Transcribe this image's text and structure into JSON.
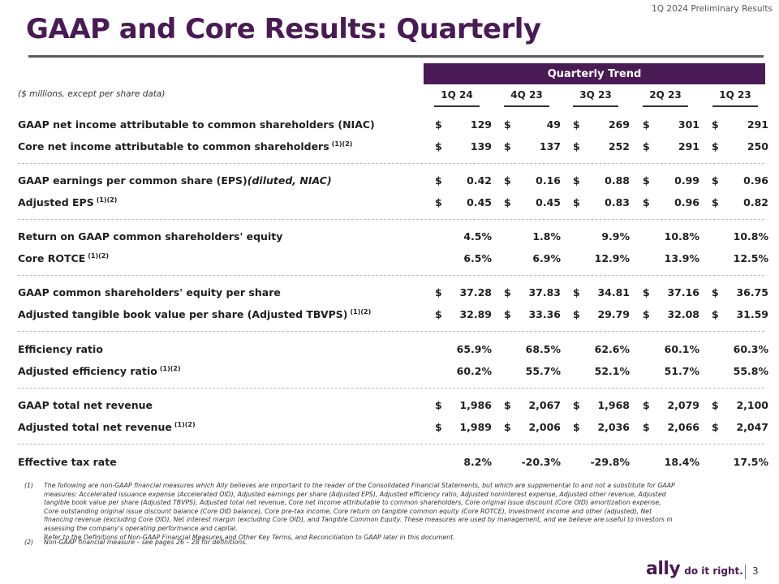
{
  "header": {
    "top_right": "1Q 2024 Preliminary Results",
    "title": "GAAP and Core Results: Quarterly"
  },
  "table": {
    "band_label": "Quarterly Trend",
    "units_note": "($ millions, except per share data)",
    "columns": [
      "1Q 24",
      "4Q 23",
      "3Q 23",
      "2Q 23",
      "1Q 23"
    ],
    "rows": [
      {
        "label": "GAAP net income attributable to common shareholders (NIAC)",
        "sup": "",
        "values": [
          "129",
          "49",
          "269",
          "301",
          "291"
        ],
        "dollar": true
      },
      {
        "label": "Core net income attributable to common shareholders",
        "sup": "(1)(2)",
        "values": [
          "139",
          "137",
          "252",
          "291",
          "250"
        ],
        "dollar": true
      },
      {
        "label": "GAAP earnings per common share (EPS)",
        "label_italic": "(diluted, NIAC)",
        "sup": "",
        "values": [
          "0.42",
          "0.16",
          "0.88",
          "0.99",
          "0.96"
        ],
        "dollar": true
      },
      {
        "label": "Adjusted EPS",
        "sup": "(1)(2)",
        "values": [
          "0.45",
          "0.45",
          "0.83",
          "0.96",
          "0.82"
        ],
        "dollar": true
      },
      {
        "label": "Return on GAAP common shareholders' equity",
        "sup": "",
        "values": [
          "4.5%",
          "1.8%",
          "9.9%",
          "10.8%",
          "10.8%"
        ],
        "dollar": false
      },
      {
        "label": "Core ROTCE",
        "sup": "(1)(2)",
        "values": [
          "6.5%",
          "6.9%",
          "12.9%",
          "13.9%",
          "12.5%"
        ],
        "dollar": false
      },
      {
        "label": "GAAP common shareholders' equity per share",
        "sup": "",
        "values": [
          "37.28",
          "37.83",
          "34.81",
          "37.16",
          "36.75"
        ],
        "dollar": true
      },
      {
        "label": "Adjusted tangible book value per share (Adjusted TBVPS)",
        "sup": "(1)(2)",
        "values": [
          "32.89",
          "33.36",
          "29.79",
          "32.08",
          "31.59"
        ],
        "dollar": true
      },
      {
        "label": "Efficiency ratio",
        "sup": "",
        "values": [
          "65.9%",
          "68.5%",
          "62.6%",
          "60.1%",
          "60.3%"
        ],
        "dollar": false
      },
      {
        "label": "Adjusted efficiency ratio",
        "sup": "(1)(2)",
        "values": [
          "60.2%",
          "55.7%",
          "52.1%",
          "51.7%",
          "55.8%"
        ],
        "dollar": false
      },
      {
        "label": "GAAP total net revenue",
        "sup": "",
        "values": [
          "1,986",
          "2,067",
          "1,968",
          "2,079",
          "2,100"
        ],
        "dollar": true
      },
      {
        "label": "Adjusted total net revenue",
        "sup": "(1)(2)",
        "values": [
          "1,989",
          "2,006",
          "2,036",
          "2,066",
          "2,047"
        ],
        "dollar": true
      },
      {
        "label": "Effective tax rate",
        "sup": "",
        "values": [
          "8.2%",
          "-20.3%",
          "-29.8%",
          "18.4%",
          "17.5%"
        ],
        "dollar": false
      }
    ]
  },
  "footnotes": [
    {
      "num": "(1)",
      "text": "The following are non-GAAP financial measures which Ally believes are important to the reader of the Consolidated Financial Statements, but which are supplemental to and not a substitute for GAAP measures: Accelerated issuance expense (Accelerated OID), Adjusted earnings per share (Adjusted EPS), Adjusted efficiency ratio, Adjusted noninterest expense, Adjusted other revenue, Adjusted tangible book value per share (Adjusted TBVPS), Adjusted total net revenue, Core net income attributable to common shareholders, Core original issue discount (Core OID) amortization expense, Core outstanding original issue discount balance (Core OID balance), Core pre-tax income, Core return on tangible common equity (Core ROTCE), Investment income and other (adjusted), Net financing revenue (excluding Core OID), Net interest margin (excluding Core OID), and Tangible Common Equity. These measures are used by management, and we believe are useful to investors in assessing the company's operating performance and capital.",
      "text2": "Refer to the Definitions of Non-GAAP Financial Measures and Other Key Terms, and Reconciliation to GAAP later in this document."
    },
    {
      "num": "(2)",
      "text": "Non-GAAP financial measure – see pages 26 – 28 for definitions.",
      "text2": ""
    }
  ],
  "footer": {
    "logo_text": "ally",
    "tagline": "do it right.",
    "page_number": "3",
    "brand_color": "#4a1a55"
  }
}
